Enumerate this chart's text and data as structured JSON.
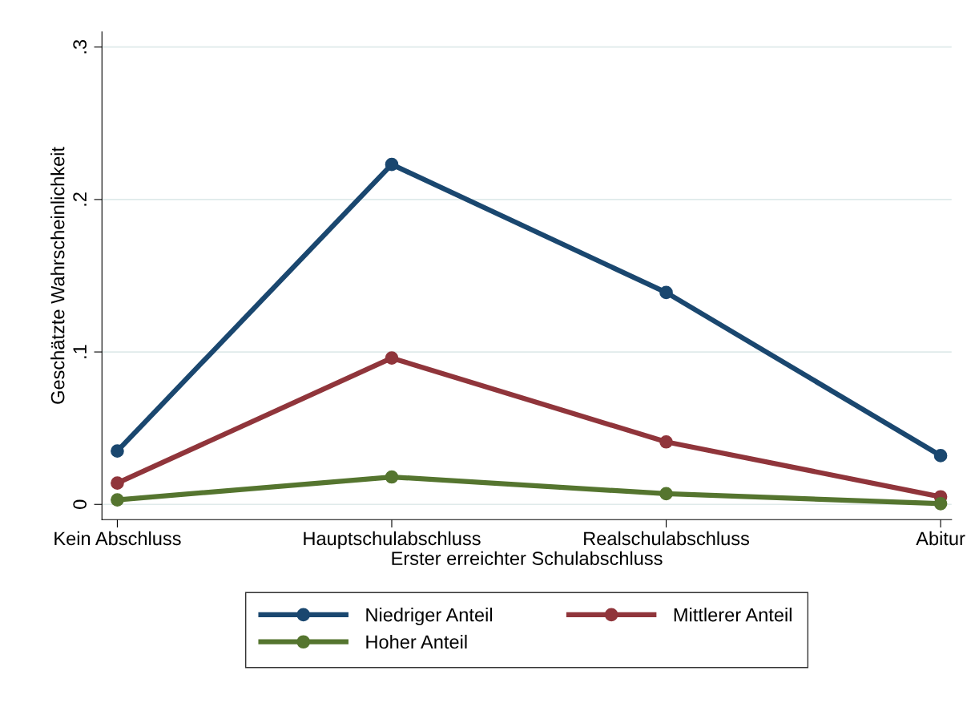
{
  "chart_data": {
    "type": "line",
    "xlabel": "Erster erreichter Schulabschluss",
    "ylabel": "Geschätzte Wahrscheinlichkeit",
    "categories": [
      "Kein Abschluss",
      "Hauptschulabschluss",
      "Realschulabschluss",
      "Abitur"
    ],
    "series": [
      {
        "name": "Niedriger Anteil",
        "color": "#1a476f",
        "values": [
          0.035,
          0.223,
          0.139,
          0.032
        ]
      },
      {
        "name": "Mittlerer Anteil",
        "color": "#90353b",
        "values": [
          0.014,
          0.096,
          0.041,
          0.005
        ]
      },
      {
        "name": "Hoher Anteil",
        "color": "#55752f",
        "values": [
          0.003,
          0.018,
          0.007,
          0.0005
        ]
      }
    ],
    "ylim": [
      -0.01,
      0.31
    ],
    "yticks": [
      0,
      {
        "value": 0.1,
        "label": ".1"
      },
      {
        "value": 0.2,
        "label": ".2"
      },
      {
        "value": 0.3,
        "label": ".3"
      }
    ],
    "grid": "y",
    "legend": "bottom",
    "marker": "circle",
    "line_style": "solid"
  }
}
